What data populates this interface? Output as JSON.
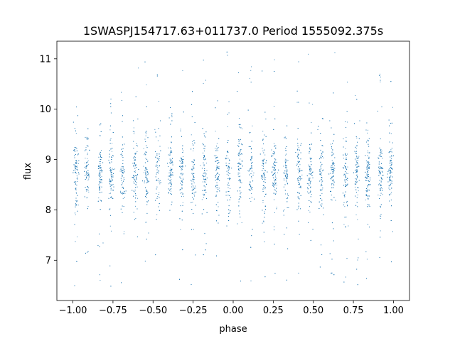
{
  "chart_data": {
    "type": "scatter",
    "title": "1SWASPJ154717.63+011737.0 Period 1555092.375s",
    "xlabel": "phase",
    "ylabel": "flux",
    "xlim": [
      -1.1,
      1.1
    ],
    "ylim": [
      6.2,
      11.35
    ],
    "grid": false,
    "x_ticks": [
      -1.0,
      -0.75,
      -0.5,
      -0.25,
      0.0,
      0.25,
      0.5,
      0.75,
      1.0
    ],
    "x_tick_labels": [
      "−1.00",
      "−0.75",
      "−0.50",
      "−0.25",
      "0.00",
      "0.25",
      "0.50",
      "0.75",
      "1.00"
    ],
    "y_ticks": [
      7,
      8,
      9,
      10,
      11
    ],
    "y_tick_labels": [
      "7",
      "8",
      "9",
      "10",
      "11"
    ],
    "series": [
      {
        "color": "#1f77b4",
        "marker": "dot",
        "x_range": [
          -1.0,
          1.0
        ],
        "median_flux": 8.75,
        "core_flux_range": [
          8.0,
          9.5
        ],
        "full_flux_range": [
          6.45,
          11.15
        ],
        "clump_centers": [
          -0.98,
          -0.91,
          -0.83,
          -0.76,
          -0.69,
          -0.61,
          -0.54,
          -0.47,
          -0.39,
          -0.32,
          -0.25,
          -0.18,
          -0.1,
          -0.03,
          0.04,
          0.11,
          0.19,
          0.26,
          0.33,
          0.41,
          0.48,
          0.55,
          0.62,
          0.7,
          0.77,
          0.84,
          0.92,
          0.98
        ]
      }
    ]
  }
}
